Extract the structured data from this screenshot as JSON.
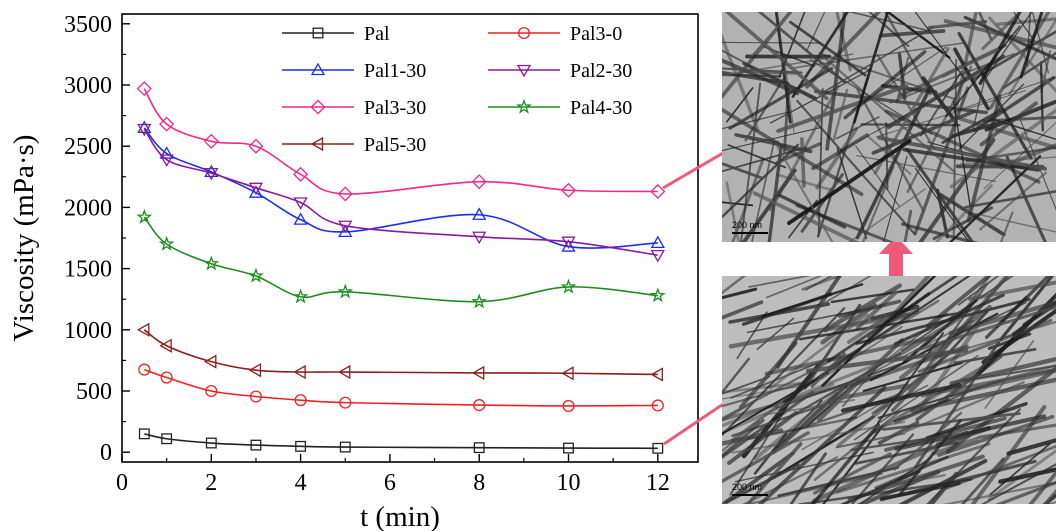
{
  "chart_data": {
    "type": "line",
    "xlabel": "t (min)",
    "ylabel": "Viscosity (mPa·s)",
    "xlim": [
      0,
      12.9
    ],
    "ylim": [
      -80,
      3580
    ],
    "x_ticks": [
      0,
      2,
      4,
      6,
      8,
      10,
      12
    ],
    "y_ticks": [
      0,
      500,
      1000,
      1500,
      2000,
      2500,
      3000,
      3500
    ],
    "grid": false,
    "legend_position": "top",
    "legend_columns": 2,
    "series": [
      {
        "name": "Pal",
        "color": "#222222",
        "marker": "square",
        "x": [
          0.5,
          1,
          2,
          3,
          4,
          5,
          8,
          10,
          12
        ],
        "y": [
          150,
          110,
          75,
          58,
          48,
          42,
          37,
          34,
          32
        ]
      },
      {
        "name": "Pal3-0",
        "color": "#ee2222",
        "marker": "circle",
        "x": [
          0.5,
          1,
          2,
          3,
          4,
          5,
          8,
          10,
          12
        ],
        "y": [
          675,
          610,
          500,
          455,
          425,
          405,
          385,
          378,
          382
        ]
      },
      {
        "name": "Pal1-30",
        "color": "#1a2ee6",
        "marker": "triangle-up",
        "x": [
          0.5,
          1,
          2,
          3,
          4,
          5,
          8,
          10,
          12
        ],
        "y": [
          2650,
          2440,
          2290,
          2120,
          1900,
          1800,
          1940,
          1680,
          1710
        ]
      },
      {
        "name": "Pal2-30",
        "color": "#8a1a9a",
        "marker": "triangle-down",
        "x": [
          0.5,
          1,
          2,
          3,
          4,
          5,
          8,
          10,
          12
        ],
        "y": [
          2640,
          2390,
          2280,
          2160,
          2040,
          1850,
          1760,
          1720,
          1610
        ]
      },
      {
        "name": "Pal3-30",
        "color": "#f0288c",
        "marker": "diamond",
        "x": [
          0.5,
          1,
          2,
          3,
          4,
          5,
          8,
          10,
          12
        ],
        "y": [
          2970,
          2680,
          2540,
          2500,
          2270,
          2110,
          2210,
          2140,
          2130
        ]
      },
      {
        "name": "Pal4-30",
        "color": "#1e8c1e",
        "marker": "star",
        "x": [
          0.5,
          1,
          2,
          3,
          4,
          5,
          8,
          10,
          12
        ],
        "y": [
          1920,
          1700,
          1540,
          1440,
          1270,
          1310,
          1230,
          1350,
          1280
        ]
      },
      {
        "name": "Pal5-30",
        "color": "#8c1e1e",
        "marker": "triangle-left",
        "x": [
          0.5,
          1,
          2,
          3,
          4,
          5,
          8,
          10,
          12
        ],
        "y": [
          1000,
          870,
          740,
          670,
          655,
          655,
          648,
          645,
          635
        ]
      }
    ]
  },
  "tem_images": {
    "top": {
      "scale_label": "200 nm"
    },
    "bottom": {
      "scale_label": "200 nm"
    }
  },
  "arrow_color": "#f05a78"
}
